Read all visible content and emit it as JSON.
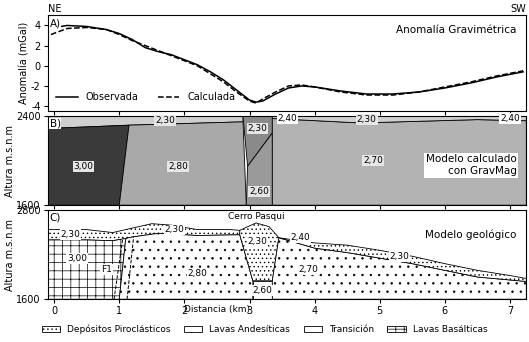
{
  "chart_data": [
    {
      "type": "line",
      "letter": "A)",
      "title": "Anomalía Gravimétrica",
      "y_label": "Anomalía (mGal)",
      "side_labels": {
        "left": "NE",
        "right": "SW"
      },
      "xlim": [
        -0.1,
        7.25
      ],
      "xticks": [
        0,
        1,
        2,
        3,
        4,
        5,
        6,
        7
      ],
      "ylim": [
        -4.5,
        5
      ],
      "yticks": [
        -4,
        -2,
        0,
        2,
        4
      ],
      "tick_labels": "y",
      "legend": "lower left",
      "series": [
        {
          "name": "Observada",
          "color": "#000000",
          "line_style": "solid",
          "x": [
            0,
            0.2,
            0.5,
            0.8,
            1.0,
            1.2,
            1.4,
            1.6,
            1.8,
            2.0,
            2.2,
            2.4,
            2.6,
            2.8,
            3.0,
            3.1,
            3.2,
            3.4,
            3.6,
            3.8,
            4.0,
            4.4,
            4.8,
            5.2,
            5.6,
            6.0,
            6.4,
            6.8,
            7.2
          ],
          "values": [
            3.8,
            4.0,
            3.9,
            3.6,
            3.2,
            2.6,
            1.8,
            1.4,
            1.1,
            0.6,
            0.1,
            -0.6,
            -1.4,
            -2.4,
            -3.4,
            -3.6,
            -3.5,
            -2.8,
            -2.2,
            -2.0,
            -2.1,
            -2.5,
            -2.8,
            -2.8,
            -2.6,
            -2.2,
            -1.7,
            -1.1,
            -0.6
          ]
        },
        {
          "name": "Calculada",
          "color": "#000000",
          "line_style": "dashed",
          "x": [
            -0.05,
            0.2,
            0.5,
            0.8,
            1.0,
            1.2,
            1.4,
            1.6,
            1.8,
            2.0,
            2.2,
            2.4,
            2.6,
            2.8,
            3.0,
            3.1,
            3.2,
            3.4,
            3.6,
            3.8,
            4.0,
            4.4,
            4.8,
            5.2,
            5.6,
            6.0,
            6.4,
            6.8,
            7.2
          ],
          "values": [
            3.1,
            3.7,
            3.8,
            3.6,
            3.1,
            2.5,
            2.0,
            1.5,
            1.0,
            0.5,
            0.0,
            -0.8,
            -1.6,
            -2.6,
            -3.5,
            -3.7,
            -3.3,
            -2.6,
            -2.0,
            -1.9,
            -2.1,
            -2.6,
            -2.9,
            -2.9,
            -2.6,
            -2.1,
            -1.6,
            -1.0,
            -0.5
          ]
        }
      ]
    },
    {
      "type": "polygons",
      "letter": "B)",
      "title": "Modelo calculado\ncon GravMag",
      "y_label": "Altura m.s.n.m",
      "xlim": [
        -0.1,
        7.25
      ],
      "xticks": [
        0,
        1,
        2,
        3,
        4,
        5,
        6,
        7
      ],
      "ylim": [
        1600,
        2400
      ],
      "yticks": [
        1600,
        2400
      ],
      "tick_labels": "y",
      "polygons": [
        {
          "label": "2,30",
          "color": "#cfcfcf",
          "x": [
            -0.1,
            2.9,
            2.9,
            1.15,
            -0.1
          ],
          "y": [
            2400,
            2400,
            2350,
            2320,
            2290
          ],
          "label_at": [
            1.7,
            2362
          ]
        },
        {
          "label": "3,00",
          "color": "#3a3a3a",
          "x": [
            -0.1,
            1.0,
            1.15,
            -0.1
          ],
          "y": [
            1600,
            1600,
            2320,
            2290
          ],
          "label_at": [
            0.45,
            1950
          ]
        },
        {
          "label": "2,80",
          "color": "#a9a9a9",
          "x": [
            1.0,
            2.95,
            2.9,
            1.15
          ],
          "y": [
            1600,
            1600,
            2350,
            2320
          ],
          "label_at": [
            1.9,
            1950
          ]
        },
        {
          "label": "2,30",
          "color": "#8a8a8a",
          "x": [
            2.9,
            3.35,
            3.35,
            2.97
          ],
          "y": [
            2400,
            2400,
            2250,
            1950
          ],
          "label_at": [
            3.12,
            2290
          ]
        },
        {
          "label": "2,60",
          "color": "#9a9a9a",
          "x": [
            2.97,
            3.35,
            3.35,
            2.95
          ],
          "y": [
            1950,
            2250,
            1600,
            1600
          ],
          "label_at": [
            3.15,
            1720
          ]
        },
        {
          "label": "2,70",
          "color": "#b3b3b3",
          "x": [
            3.35,
            7.25,
            7.25,
            6.5,
            4.7,
            3.35
          ],
          "y": [
            1600,
            1600,
            2360,
            2370,
            2340,
            2380
          ],
          "label_at": [
            4.9,
            2000
          ]
        },
        {
          "label": "2,30",
          "color": "#cfcfcf",
          "x": [
            3.35,
            7.25,
            7.25,
            6.5,
            4.7,
            3.35
          ],
          "y": [
            2400,
            2400,
            2360,
            2370,
            2340,
            2380
          ],
          "label_at": [
            4.8,
            2372
          ]
        }
      ],
      "annotations": [
        {
          "text": "2,40",
          "x": 3.58,
          "y": 2380
        },
        {
          "text": "2,40",
          "x": 7.0,
          "y": 2380
        }
      ]
    },
    {
      "type": "polygons",
      "letter": "C)",
      "title": "Modelo geológico",
      "y_label": "Altura m.s.n.m",
      "x_label": "Distancia (km)",
      "xlim": [
        -0.1,
        7.25
      ],
      "xticks": [
        0,
        1,
        2,
        3,
        4,
        5,
        6,
        7
      ],
      "ylim": [
        1600,
        2800
      ],
      "yticks": [
        1600,
        2800
      ],
      "legend": "lower center",
      "units": [
        "Depósitos Piroclásticos",
        "Lavas Andesíticas",
        "Transición",
        "Lavas Basálticas"
      ],
      "polygons": [
        {
          "label": "2,30",
          "unit": 0,
          "x": [
            -0.1,
            0.5,
            0.9,
            1.2,
            1.5,
            1.8,
            2.2,
            2.7,
            2.85,
            2.85,
            2.2,
            1.6,
            1.2,
            1.1,
            0.9,
            0.5,
            -0.1
          ],
          "y": [
            2540,
            2540,
            2500,
            2560,
            2620,
            2600,
            2540,
            2540,
            2530,
            2470,
            2460,
            2490,
            2440,
            2420,
            2390,
            2400,
            2400
          ],
          "label_at": [
            1.85,
            2535
          ]
        },
        {
          "label": "3,00",
          "unit": 3,
          "x": [
            -0.1,
            1.0,
            1.1,
            0.9,
            0.5,
            -0.1
          ],
          "y": [
            1600,
            1600,
            2420,
            2390,
            2400,
            2400
          ],
          "label_at": [
            0.35,
            2150
          ]
        },
        {
          "label": "2,80",
          "unit": 1,
          "x": [
            1.0,
            3.05,
            3.05,
            2.85,
            2.2,
            1.6,
            1.2,
            1.1
          ],
          "y": [
            1600,
            1600,
            1850,
            2470,
            2460,
            2490,
            2440,
            2420
          ],
          "label_at": [
            2.2,
            1950
          ]
        },
        {
          "label": "2,30",
          "unit": 0,
          "x": [
            2.85,
            2.85,
            3.1,
            3.3,
            3.45,
            3.35,
            3.05
          ],
          "y": [
            2470,
            2530,
            2630,
            2580,
            2430,
            1850,
            1850
          ],
          "label_at": [
            3.12,
            2380
          ]
        },
        {
          "label": "2,60",
          "unit": 2,
          "x": [
            3.05,
            3.35,
            3.35,
            3.05
          ],
          "y": [
            1600,
            1600,
            1850,
            1850
          ],
          "label_at": [
            3.2,
            1720
          ]
        },
        {
          "label": "2,70",
          "unit": 1,
          "x": [
            3.35,
            7.25,
            7.25,
            6.5,
            5.5,
            4.5,
            4.0,
            3.45,
            3.35
          ],
          "y": [
            1600,
            1600,
            1840,
            1900,
            2080,
            2230,
            2290,
            2430,
            1850
          ],
          "label_at": [
            3.9,
            2000
          ]
        },
        {
          "label": "2,30",
          "unit": 0,
          "x": [
            3.45,
            4.0,
            4.5,
            5.0,
            5.5,
            6.0,
            6.5,
            7.0,
            7.25,
            7.25,
            6.5,
            5.5,
            4.5,
            4.0
          ],
          "y": [
            2430,
            2360,
            2330,
            2260,
            2180,
            2080,
            1990,
            1920,
            1880,
            1840,
            1900,
            2080,
            2230,
            2290
          ],
          "label_at": [
            5.3,
            2180
          ]
        }
      ],
      "lines": [
        {
          "x": [
            0.92,
            1.05
          ],
          "y": [
            1600,
            2400
          ],
          "line_style": "dashed"
        },
        {
          "x": [
            1.12,
            1.22
          ],
          "y": [
            1600,
            2440
          ],
          "line_style": "dashed"
        }
      ],
      "annotations": [
        {
          "text": "2,30",
          "x": 0.25,
          "y": 2470
        },
        {
          "text": "2,40",
          "x": 3.78,
          "y": 2430
        },
        {
          "text": "F1",
          "x": 0.8,
          "y": 2000
        },
        {
          "text": "Cerro Pasqui",
          "x": 3.1,
          "y": 2722
        }
      ]
    }
  ]
}
